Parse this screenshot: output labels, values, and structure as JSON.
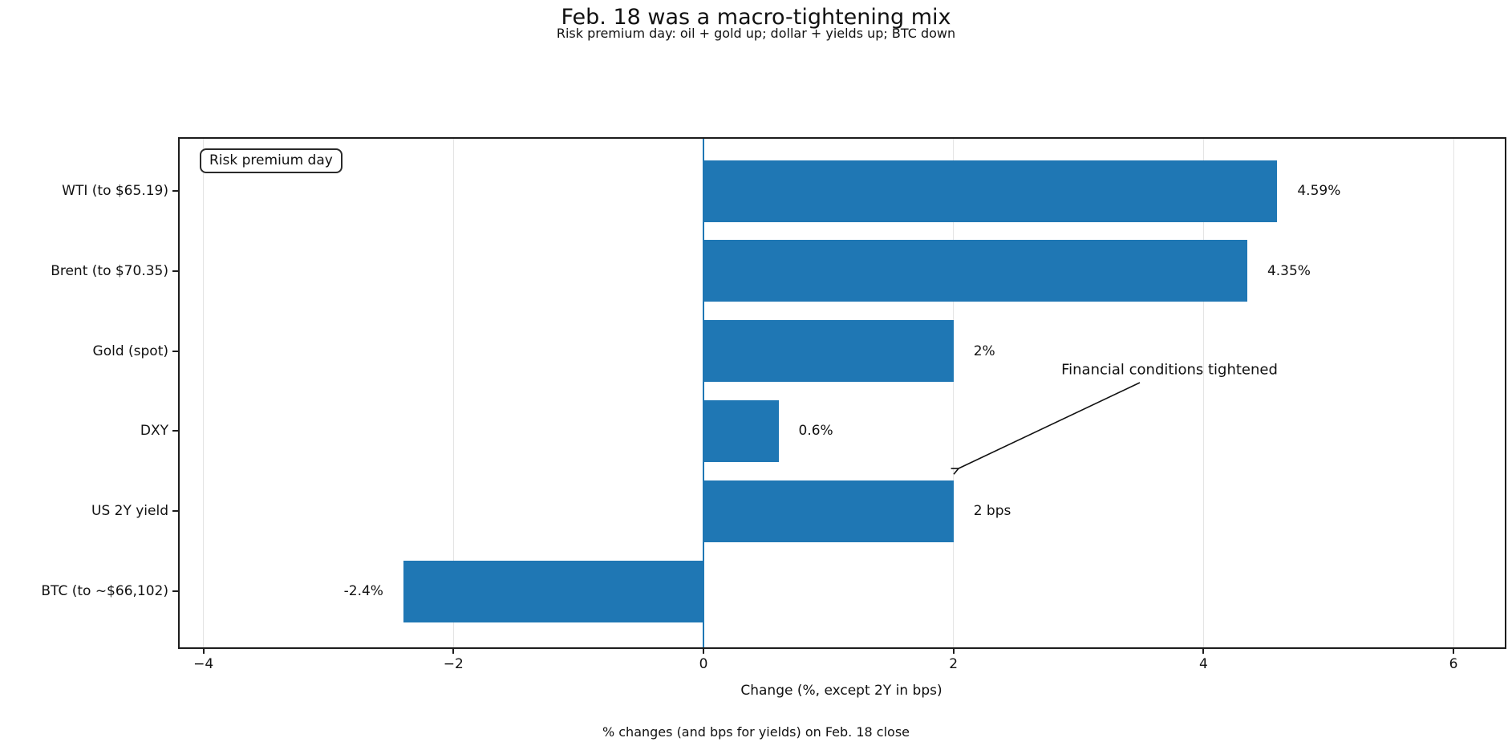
{
  "header": {
    "title": "Feb. 18 was a macro-tightening mix",
    "subtitle": "Risk premium day: oil + gold up; dollar + yields up; BTC down"
  },
  "legend": {
    "label": "Risk premium day"
  },
  "annotation": {
    "text": "Financial conditions tightened"
  },
  "xaxis": {
    "label": "Change (%, except 2Y in bps)",
    "tick_values": [
      -4,
      -2,
      0,
      2,
      4,
      6
    ],
    "tick_labels": [
      "−4",
      "−2",
      "0",
      "2",
      "4",
      "6"
    ]
  },
  "footer": {
    "caption": "% changes (and bps for yields) on Feb. 18 close"
  },
  "colors": {
    "bar": "#1f77b4",
    "zero_line": "#1f77b4",
    "grid": "#e4e4e4",
    "frame": "#1c1c1c"
  },
  "chart_data": {
    "type": "bar",
    "orientation": "horizontal",
    "title": "Feb. 18 was a macro-tightening mix",
    "subtitle": "Risk premium day: oil + gold up; dollar + yields up; BTC down",
    "categories": [
      "WTI (to $65.19)",
      "Brent (to $70.35)",
      "Gold (spot)",
      "DXY",
      "US 2Y yield",
      "BTC (to ~$66,102)"
    ],
    "values": [
      4.59,
      4.35,
      2,
      0.6,
      2,
      -2.4
    ],
    "value_labels": [
      "4.59%",
      "4.35%",
      "2%",
      "0.6%",
      "2 bps",
      "-2.4%"
    ],
    "xlabel": "Change (%, except 2Y in bps)",
    "xlim": [
      -4.19,
      6.41
    ],
    "xticks": [
      -4,
      -2,
      0,
      2,
      4,
      6
    ],
    "grid": true,
    "legend": "Risk premium day",
    "annotation": "Financial conditions tightened",
    "caption": "% changes (and bps for yields) on Feb. 18 close",
    "bar_color": "#1f77b4",
    "zero_line": true
  }
}
